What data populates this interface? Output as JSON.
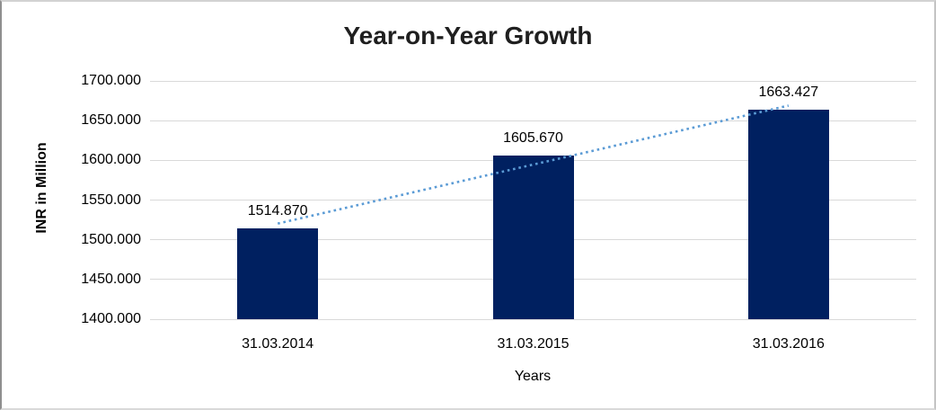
{
  "chart": {
    "title": "Year-on-Year Growth",
    "y_axis_title": "INR in Million",
    "x_axis_title": "Years"
  },
  "chart_data": {
    "type": "bar",
    "title": "Year-on-Year Growth",
    "xlabel": "Years",
    "ylabel": "INR in Million",
    "categories": [
      "31.03.2014",
      "31.03.2015",
      "31.03.2016"
    ],
    "values": [
      1514.87,
      1605.67,
      1663.427
    ],
    "value_labels": [
      "1514.870",
      "1605.670",
      "1663.427"
    ],
    "ylim": [
      1400,
      1700
    ],
    "ytick_step": 50,
    "ytick_labels": [
      "1400.000",
      "1450.000",
      "1500.000",
      "1550.000",
      "1600.000",
      "1650.000",
      "1700.000"
    ],
    "grid": true,
    "legend": false,
    "trendline": {
      "type": "linear",
      "style": "dotted"
    },
    "colors": {
      "bar": "#002060",
      "trendline": "#5b9bd5",
      "gridline": "#d9d9d9",
      "title_text": "#1f1f1f",
      "label_text": "#000000"
    }
  }
}
